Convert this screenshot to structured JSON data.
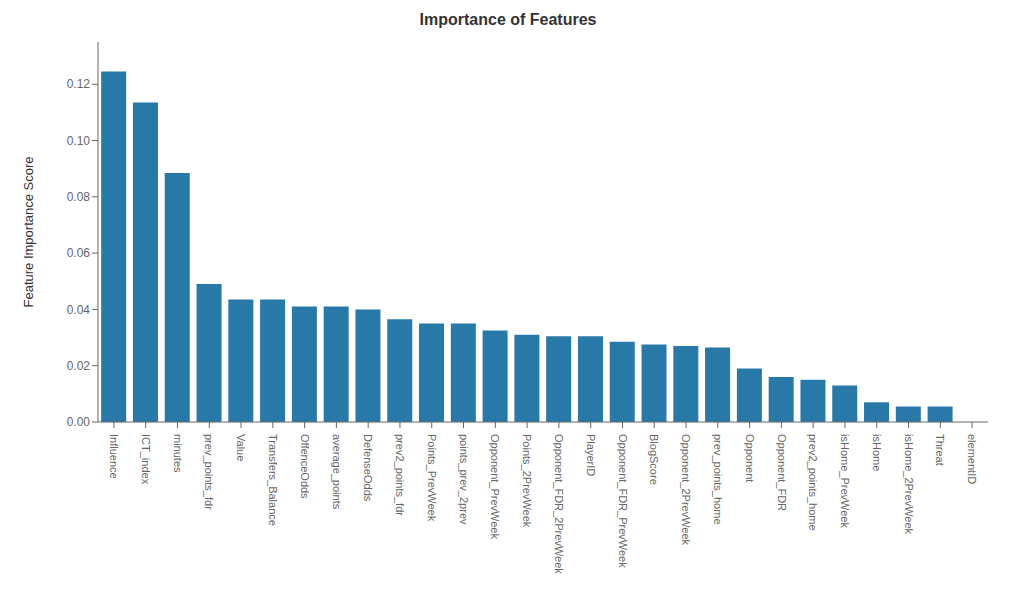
{
  "chart_data": {
    "type": "bar",
    "title": "Importance of Features",
    "ylabel": "Feature Importance Score",
    "color": "#2878a8",
    "categories": [
      "Influence",
      "ICT_index",
      "minutes",
      "prev_points_fdr",
      "Value",
      "Transfers_Balance",
      "OffenceOdds",
      "average_points",
      "DefenseOdds",
      "prev2_points_fdr",
      "Points_PrevWeek",
      "points_prev_2prev",
      "Opponent_PrevWeek",
      "Points_2PrevWeek",
      "Opponent_FDR_2PrevWeek",
      "PlayerID",
      "Opponent_FDR_PrevWeek",
      "BlogScore",
      "Opponent_2PrevWeek",
      "prev_points_home",
      "Opponent",
      "Opponent_FDR",
      "prev2_points_home",
      "isHome_PrevWeek",
      "isHome",
      "isHome_2PrevWeek",
      "Threat",
      "elementID"
    ],
    "values": [
      0.1245,
      0.1135,
      0.0885,
      0.049,
      0.0435,
      0.0435,
      0.041,
      0.041,
      0.04,
      0.0365,
      0.035,
      0.035,
      0.0325,
      0.031,
      0.0305,
      0.0305,
      0.0285,
      0.0275,
      0.027,
      0.0265,
      0.019,
      0.016,
      0.015,
      0.013,
      0.007,
      0.0055,
      0.0055,
      0.0
    ],
    "ylim": [
      0,
      0.135
    ],
    "yticks": [
      {
        "value": 0,
        "label": "0.00"
      },
      0.02,
      0.04,
      0.06,
      0.08,
      {
        "value": 0.1,
        "label": "0.10"
      },
      0.12
    ]
  }
}
